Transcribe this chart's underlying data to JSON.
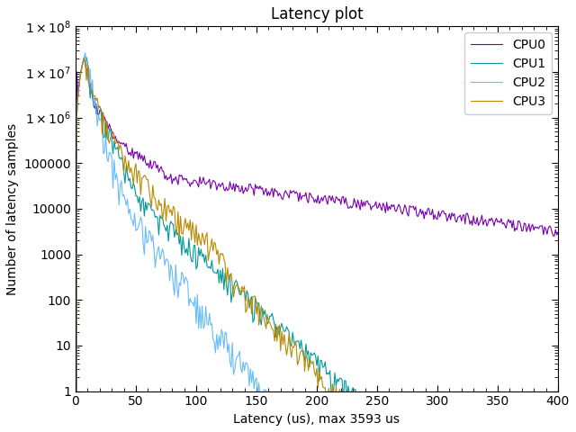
{
  "title": "Latency plot",
  "xlabel": "Latency (us), max 3593 us",
  "ylabel": "Number of latency samples",
  "xlim": [
    0,
    400
  ],
  "ylim": [
    1,
    100000000.0
  ],
  "cpu_colors": [
    "#7700aa",
    "#009999",
    "#66bbff",
    "#bb8800"
  ],
  "cpu_labels": [
    "CPU0",
    "CPU1",
    "CPU2",
    "CPU3"
  ],
  "legend_loc": "upper right",
  "n_peak": 20000000,
  "max_latency_us": 400,
  "seed0": 10,
  "seed1": 20,
  "seed2": 30,
  "seed3": 40
}
